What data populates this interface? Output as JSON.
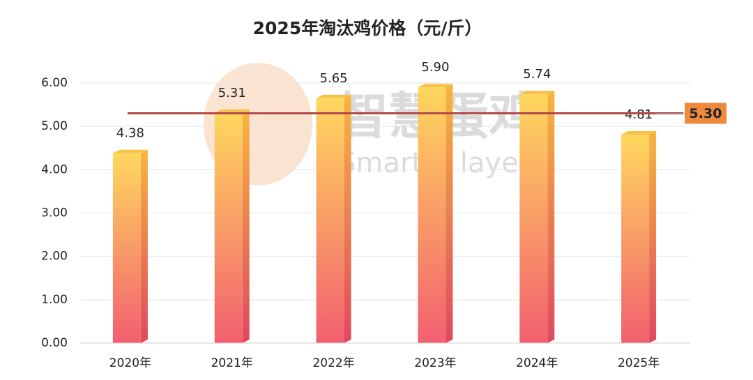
{
  "chart_data": {
    "type": "bar",
    "title": "2025年淘汰鸡价格（元/斤）",
    "categories": [
      "2020年",
      "2021年",
      "2022年",
      "2023年",
      "2024年",
      "2025年"
    ],
    "values": [
      4.38,
      5.31,
      5.65,
      5.9,
      5.74,
      4.81
    ],
    "value_labels": [
      "4.38",
      "5.31",
      "5.65",
      "5.90",
      "5.74",
      "4.81"
    ],
    "color": "#f7a35c",
    "ylim": [
      0,
      6
    ],
    "yticks": [
      {
        "value": 0,
        "label": "0.00"
      },
      {
        "value": 1,
        "label": "1.00"
      },
      {
        "value": 2,
        "label": "2.00"
      },
      {
        "value": 3,
        "label": "3.00"
      },
      {
        "value": 4,
        "label": "4.00"
      },
      {
        "value": 5,
        "label": "5.00"
      },
      {
        "value": 6,
        "label": "6.00"
      }
    ],
    "grid": true,
    "reference_line": {
      "value": 5.3,
      "label": "5.30",
      "color": "#b5474a"
    },
    "watermark": {
      "title": "智慧蛋鸡",
      "subtitle": "Smarter layer"
    }
  }
}
